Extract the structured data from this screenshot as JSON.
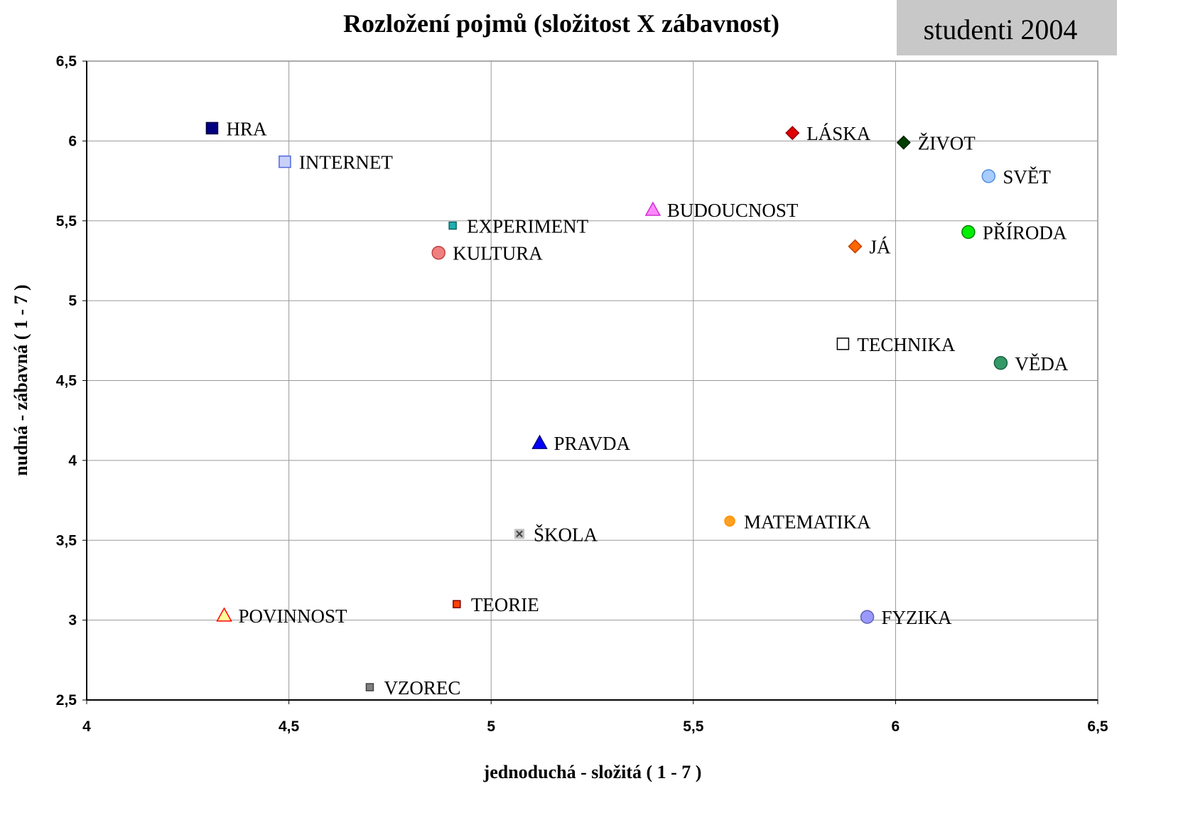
{
  "chart_data": {
    "type": "scatter",
    "title": "Rozložení pojmů (složitost X zábavnost)",
    "badge": "studenti 2004",
    "xlabel": "jednoduchá - složitá ( 1 - 7 )",
    "ylabel": "nudná - zábavná ( 1 - 7 )",
    "xlim": [
      4,
      6.5
    ],
    "ylim": [
      2.5,
      6.5
    ],
    "xticks": [
      4,
      {
        "value": 4.5,
        "label": "4,5"
      },
      5,
      {
        "value": 5.5,
        "label": "5,5"
      },
      6,
      {
        "value": 6.5,
        "label": "6,5"
      }
    ],
    "yticks": [
      {
        "value": 2.5,
        "label": "2,5"
      },
      3,
      {
        "value": 3.5,
        "label": "3,5"
      },
      4,
      {
        "value": 4.5,
        "label": "4,5"
      },
      5,
      {
        "value": 5.5,
        "label": "5,5"
      },
      6,
      {
        "value": 6.5,
        "label": "6,5"
      }
    ],
    "grid": true,
    "series": [
      {
        "name": "HRA",
        "color": "#000080",
        "edgecolor": "#000040",
        "marker": "square",
        "x": [
          4.31
        ],
        "values": [
          6.08
        ]
      },
      {
        "name": "INTERNET",
        "color": "#c8d0f8",
        "edgecolor": "#5068e0",
        "marker": "square",
        "x": [
          4.49
        ],
        "values": [
          5.87
        ]
      },
      {
        "name": "EXPERIMENT",
        "color": "#20b0b0",
        "edgecolor": "#106060",
        "marker": "smallsquare",
        "x": [
          4.905
        ],
        "values": [
          5.47
        ]
      },
      {
        "name": "KULTURA",
        "color": "#f08080",
        "edgecolor": "#c04040",
        "marker": "circle",
        "x": [
          4.87
        ],
        "values": [
          5.3
        ]
      },
      {
        "name": "BUDOUCNOST",
        "color": "#ff88ff",
        "edgecolor": "#d030d0",
        "marker": "triangle",
        "x": [
          5.4
        ],
        "values": [
          5.57
        ]
      },
      {
        "name": "LÁSKA",
        "color": "#e00000",
        "edgecolor": "#900000",
        "marker": "diamond",
        "x": [
          5.745
        ],
        "values": [
          6.05
        ]
      },
      {
        "name": "ŽIVOT",
        "color": "#004000",
        "edgecolor": "#002000",
        "marker": "diamond",
        "x": [
          6.02
        ],
        "values": [
          5.99
        ]
      },
      {
        "name": "SVĚT",
        "color": "#a8ccff",
        "edgecolor": "#5090e0",
        "marker": "circle",
        "x": [
          6.23
        ],
        "values": [
          5.78
        ]
      },
      {
        "name": "PŘÍRODA",
        "color": "#00ee00",
        "edgecolor": "#008000",
        "marker": "circle",
        "x": [
          6.18
        ],
        "values": [
          5.43
        ]
      },
      {
        "name": "JÁ",
        "color": "#ff6600",
        "edgecolor": "#c04000",
        "marker": "diamond",
        "x": [
          5.9
        ],
        "values": [
          5.34
        ]
      },
      {
        "name": "TECHNIKA",
        "color": "#ffffff",
        "edgecolor": "#000000",
        "marker": "square",
        "x": [
          5.87
        ],
        "values": [
          4.73
        ]
      },
      {
        "name": "VĚDA",
        "color": "#339966",
        "edgecolor": "#1c6040",
        "marker": "circle",
        "x": [
          6.26
        ],
        "values": [
          4.61
        ]
      },
      {
        "name": "PRAVDA",
        "color": "#0000ff",
        "edgecolor": "#000080",
        "marker": "triangle",
        "x": [
          5.12
        ],
        "values": [
          4.11
        ]
      },
      {
        "name": "MATEMATIKA",
        "color": "#ffa020",
        "edgecolor": "#ff9000",
        "marker": "smallcircle",
        "x": [
          5.59
        ],
        "values": [
          3.62
        ]
      },
      {
        "name": "ŠKOLA",
        "color": "#c0c0c0",
        "edgecolor": "#404040",
        "marker": "cross",
        "x": [
          5.07
        ],
        "values": [
          3.54
        ]
      },
      {
        "name": "TEORIE",
        "color": "#ff4000",
        "edgecolor": "#800000",
        "marker": "smallsquare",
        "x": [
          4.915
        ],
        "values": [
          3.1
        ]
      },
      {
        "name": "POVINNOST",
        "color": "#ffff99",
        "edgecolor": "#ff0000",
        "marker": "triangle",
        "x": [
          4.34
        ],
        "values": [
          3.03
        ]
      },
      {
        "name": "FYZIKA",
        "color": "#9999ff",
        "edgecolor": "#6060b0",
        "marker": "circle",
        "x": [
          5.93
        ],
        "values": [
          3.02
        ]
      },
      {
        "name": "VZOREC",
        "color": "#808080",
        "edgecolor": "#404040",
        "marker": "smallsquare",
        "x": [
          4.7
        ],
        "values": [
          2.58
        ]
      }
    ]
  }
}
